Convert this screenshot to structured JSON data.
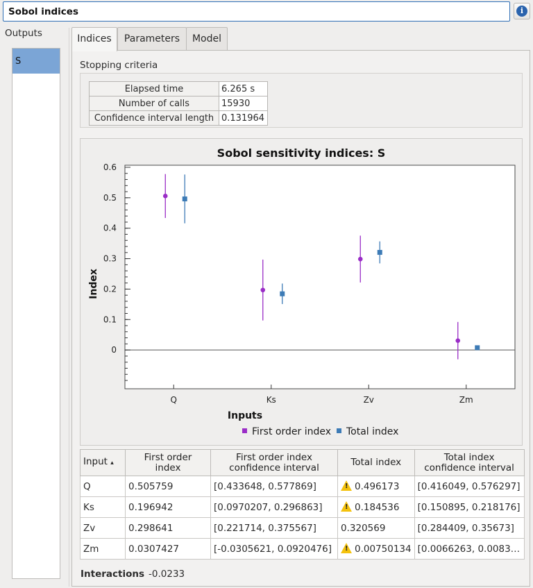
{
  "window": {
    "title": "Sobol indices"
  },
  "outputs": {
    "label": "Outputs",
    "items": [
      "S"
    ]
  },
  "tabs": [
    "Indices",
    "Parameters",
    "Model"
  ],
  "stopping": {
    "label": "Stopping criteria",
    "rows": [
      {
        "key": "Elapsed time",
        "value": "6.265 s"
      },
      {
        "key": "Number of calls",
        "value": "15930"
      },
      {
        "key": "Confidence interval length",
        "value": "0.131964"
      }
    ]
  },
  "chart_data": {
    "type": "scatter",
    "title": "Sobol sensitivity indices: S",
    "xlabel": "Inputs",
    "ylabel": "Index",
    "categories": [
      "Q",
      "Ks",
      "Zv",
      "Zm"
    ],
    "ylim": [
      -0.1,
      0.6
    ],
    "yticks": [
      "0.6",
      "0.5",
      "0.4",
      "0.3",
      "0.2",
      "0.1",
      "0"
    ],
    "legend_position": "bottom",
    "series": [
      {
        "name": "First order index",
        "color": "#9a2dc7",
        "marker": "circle",
        "values": [
          0.505759,
          0.196942,
          0.298641,
          0.0307427
        ],
        "ci": [
          [
            0.433648,
            0.577869
          ],
          [
            0.0970207,
            0.296863
          ],
          [
            0.221714,
            0.375567
          ],
          [
            -0.0305621,
            0.0920476
          ]
        ]
      },
      {
        "name": "Total index",
        "color": "#3d7bb6",
        "marker": "square",
        "values": [
          0.496173,
          0.184536,
          0.320569,
          0.00750134
        ],
        "ci": [
          [
            0.416049,
            0.576297
          ],
          [
            0.150895,
            0.218176
          ],
          [
            0.284409,
            0.35673
          ],
          [
            0.0066263,
            0.0083
          ]
        ]
      }
    ]
  },
  "table": {
    "headers": [
      [
        "Input",
        "▴"
      ],
      [
        "First order",
        "index"
      ],
      [
        "First order index",
        "confidence interval"
      ],
      [
        "Total index",
        ""
      ],
      [
        "Total index",
        "confidence interval"
      ]
    ],
    "rows": [
      {
        "input": "Q",
        "first": "0.505759",
        "first_ci": "[0.433648, 0.577869]",
        "total": "0.496173",
        "total_warn": true,
        "total_ci": "[0.416049, 0.576297]"
      },
      {
        "input": "Ks",
        "first": "0.196942",
        "first_ci": "[0.0970207, 0.296863]",
        "total": "0.184536",
        "total_warn": true,
        "total_ci": "[0.150895, 0.218176]"
      },
      {
        "input": "Zv",
        "first": "0.298641",
        "first_ci": "[0.221714, 0.375567]",
        "total": "0.320569",
        "total_warn": false,
        "total_ci": "[0.284409, 0.35673]"
      },
      {
        "input": "Zm",
        "first": "0.0307427",
        "first_ci": "[-0.0305621, 0.0920476]",
        "total": "0.00750134",
        "total_warn": true,
        "total_ci": "[0.0066263, 0.0083…"
      }
    ]
  },
  "interactions": {
    "label": "Interactions",
    "value": "-0.0233"
  }
}
